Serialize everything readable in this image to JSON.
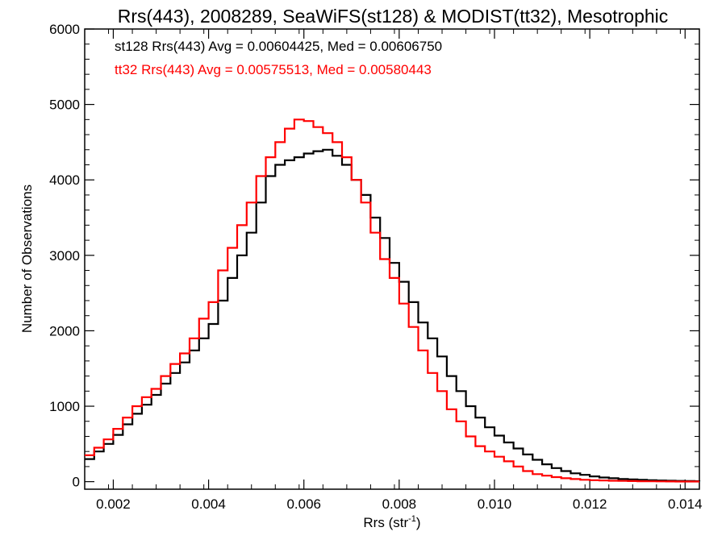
{
  "chart_data": {
    "type": "line",
    "title": "Rrs(443), 2008289, SeaWiFS(st128) & MODIST(tt32), Mesotrophic",
    "xlabel": "Rrs (str",
    "xlabel_sup": "-1",
    "xlabel_end": ")",
    "ylabel": "Number of Observations",
    "xlim": [
      0.0014,
      0.0143
    ],
    "ylim": [
      -100,
      6000
    ],
    "x_ticks": [
      0.002,
      0.004,
      0.006,
      0.008,
      0.01,
      0.012,
      0.014
    ],
    "x_tick_labels": [
      "0.002",
      "0.004",
      "0.006",
      "0.008",
      "0.010",
      "0.012",
      "0.014"
    ],
    "y_ticks": [
      0,
      1000,
      2000,
      3000,
      4000,
      5000,
      6000
    ],
    "y_tick_labels": [
      "0",
      "1000",
      "2000",
      "3000",
      "4000",
      "5000",
      "6000"
    ],
    "grid": false,
    "annotations": [
      {
        "text": "st128 Rrs(443) Avg = 0.00604425, Med = 0.00606750",
        "color": "#000000"
      },
      {
        "text": "tt32 Rrs(443) Avg = 0.00575513, Med = 0.00580443",
        "color": "#ff0000"
      }
    ],
    "series": [
      {
        "color": "#000000",
        "x": [
          0.0014,
          0.0016,
          0.0018,
          0.002,
          0.0022,
          0.0024,
          0.0026,
          0.0028,
          0.003,
          0.0032,
          0.0034,
          0.0036,
          0.0038,
          0.004,
          0.0042,
          0.0044,
          0.0046,
          0.0048,
          0.005,
          0.0052,
          0.0054,
          0.0056,
          0.0058,
          0.006,
          0.0062,
          0.0064,
          0.0066,
          0.0068,
          0.007,
          0.0072,
          0.0074,
          0.0076,
          0.0078,
          0.008,
          0.0082,
          0.0084,
          0.0086,
          0.0088,
          0.009,
          0.0092,
          0.0094,
          0.0096,
          0.0098,
          0.01,
          0.0102,
          0.0104,
          0.0106,
          0.0108,
          0.011,
          0.0112,
          0.0114,
          0.0116,
          0.0118,
          0.012,
          0.0122,
          0.0124,
          0.0126,
          0.0128,
          0.013,
          0.0132,
          0.0134,
          0.0136,
          0.0138,
          0.014,
          0.0142,
          0.0143
        ],
        "y": [
          300,
          400,
          500,
          620,
          760,
          900,
          1020,
          1150,
          1300,
          1440,
          1580,
          1740,
          1900,
          2090,
          2400,
          2700,
          3000,
          3300,
          3700,
          4050,
          4200,
          4260,
          4300,
          4350,
          4380,
          4400,
          4320,
          4200,
          4000,
          3800,
          3500,
          3230,
          2900,
          2650,
          2380,
          2110,
          1900,
          1660,
          1400,
          1200,
          1000,
          850,
          720,
          610,
          520,
          440,
          360,
          290,
          230,
          180,
          140,
          110,
          90,
          70,
          55,
          45,
          35,
          30,
          25,
          20,
          15,
          12,
          10,
          8,
          6,
          5
        ]
      },
      {
        "color": "#ff0000",
        "x": [
          0.0014,
          0.0016,
          0.0018,
          0.002,
          0.0022,
          0.0024,
          0.0026,
          0.0028,
          0.003,
          0.0032,
          0.0034,
          0.0036,
          0.0038,
          0.004,
          0.0042,
          0.0044,
          0.0046,
          0.0048,
          0.005,
          0.0052,
          0.0054,
          0.0056,
          0.0058,
          0.006,
          0.0062,
          0.0064,
          0.0066,
          0.0068,
          0.007,
          0.0072,
          0.0074,
          0.0076,
          0.0078,
          0.008,
          0.0082,
          0.0084,
          0.0086,
          0.0088,
          0.009,
          0.0092,
          0.0094,
          0.0096,
          0.0098,
          0.01,
          0.0102,
          0.0104,
          0.0106,
          0.0108,
          0.011,
          0.0112,
          0.0114,
          0.0116,
          0.0118,
          0.012,
          0.0122,
          0.0124,
          0.0126,
          0.0128,
          0.013,
          0.0132,
          0.0134,
          0.0136,
          0.0138,
          0.014,
          0.0142,
          0.0143
        ],
        "y": [
          350,
          450,
          560,
          700,
          850,
          1000,
          1120,
          1230,
          1400,
          1560,
          1700,
          1900,
          2160,
          2380,
          2800,
          3100,
          3400,
          3700,
          4050,
          4300,
          4500,
          4680,
          4800,
          4780,
          4700,
          4620,
          4500,
          4300,
          4000,
          3700,
          3300,
          2950,
          2700,
          2360,
          2050,
          1740,
          1440,
          1200,
          960,
          800,
          600,
          470,
          400,
          330,
          270,
          200,
          140,
          100,
          80,
          60,
          45,
          35,
          25,
          20,
          15,
          12,
          10,
          8,
          6,
          5,
          4,
          3,
          2,
          2,
          1,
          1
        ]
      }
    ]
  }
}
